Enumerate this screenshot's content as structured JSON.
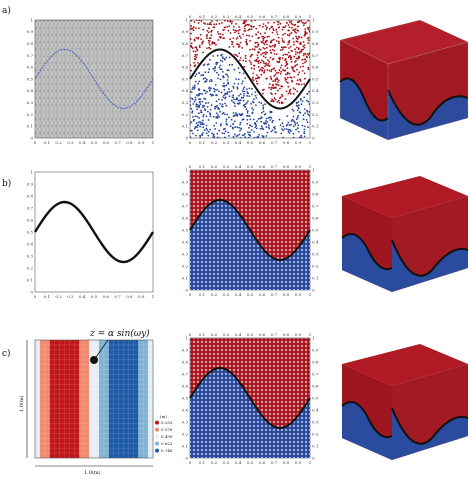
{
  "panels": {
    "a": "a)",
    "b": "b)",
    "c": "c)"
  },
  "ticks": [
    "0",
    "0.1",
    "0.2",
    "0.3",
    "0.4",
    "0.5",
    "0.6",
    "0.7",
    "0.8",
    "0.9",
    "1"
  ],
  "equation": "z = α sin(ωy)",
  "dim_label": "1.0(m)",
  "colorbar": {
    "unit": "(m)",
    "entries": [
      {
        "label": "0.253",
        "color": "#c0151b"
      },
      {
        "label": "0.376",
        "color": "#f08a6e"
      },
      {
        "label": "0.499",
        "color": "#e9eef4"
      },
      {
        "label": "0.623",
        "color": "#7fb3d6"
      },
      {
        "label": "0.746",
        "color": "#1f5aa6"
      }
    ]
  },
  "colors": {
    "red_phase": "#a8121c",
    "blue_phase": "#26469a",
    "mesh_grey": "#c7c7c7",
    "interface": "#111111",
    "blue_curve": "#3a4fd6"
  },
  "chart_data": [
    {
      "type": "line",
      "panel": "a-mesh",
      "x_range": [
        0,
        1
      ],
      "y_range": [
        0,
        1
      ],
      "series": [
        {
          "points": [
            [
              0,
              0.5
            ],
            [
              0.25,
              0.75
            ],
            [
              0.5,
              0.5
            ],
            [
              0.75,
              0.25
            ],
            [
              1,
              0.5
            ]
          ]
        }
      ]
    },
    {
      "type": "scatter",
      "panel": "a-particles",
      "x_range": [
        0,
        1
      ],
      "y_range": [
        0,
        1
      ]
    },
    {
      "type": "line",
      "panel": "b-interface",
      "x_range": [
        0,
        1
      ],
      "y_range": [
        0,
        1
      ],
      "series": [
        {
          "points": [
            [
              0,
              0.5
            ],
            [
              0.25,
              0.75
            ],
            [
              0.5,
              0.5
            ],
            [
              0.75,
              0.25
            ],
            [
              1,
              0.5
            ]
          ]
        }
      ]
    },
    {
      "type": "scatter",
      "panel": "b-particles",
      "x_range": [
        0,
        1
      ],
      "y_range": [
        0,
        1
      ]
    },
    {
      "type": "heatmap",
      "panel": "c-height-field",
      "x_range": [
        0,
        1
      ],
      "y_range": [
        0,
        1
      ]
    },
    {
      "type": "scatter",
      "panel": "c-particles",
      "x_range": [
        0,
        1
      ],
      "y_range": [
        0,
        1
      ]
    }
  ]
}
